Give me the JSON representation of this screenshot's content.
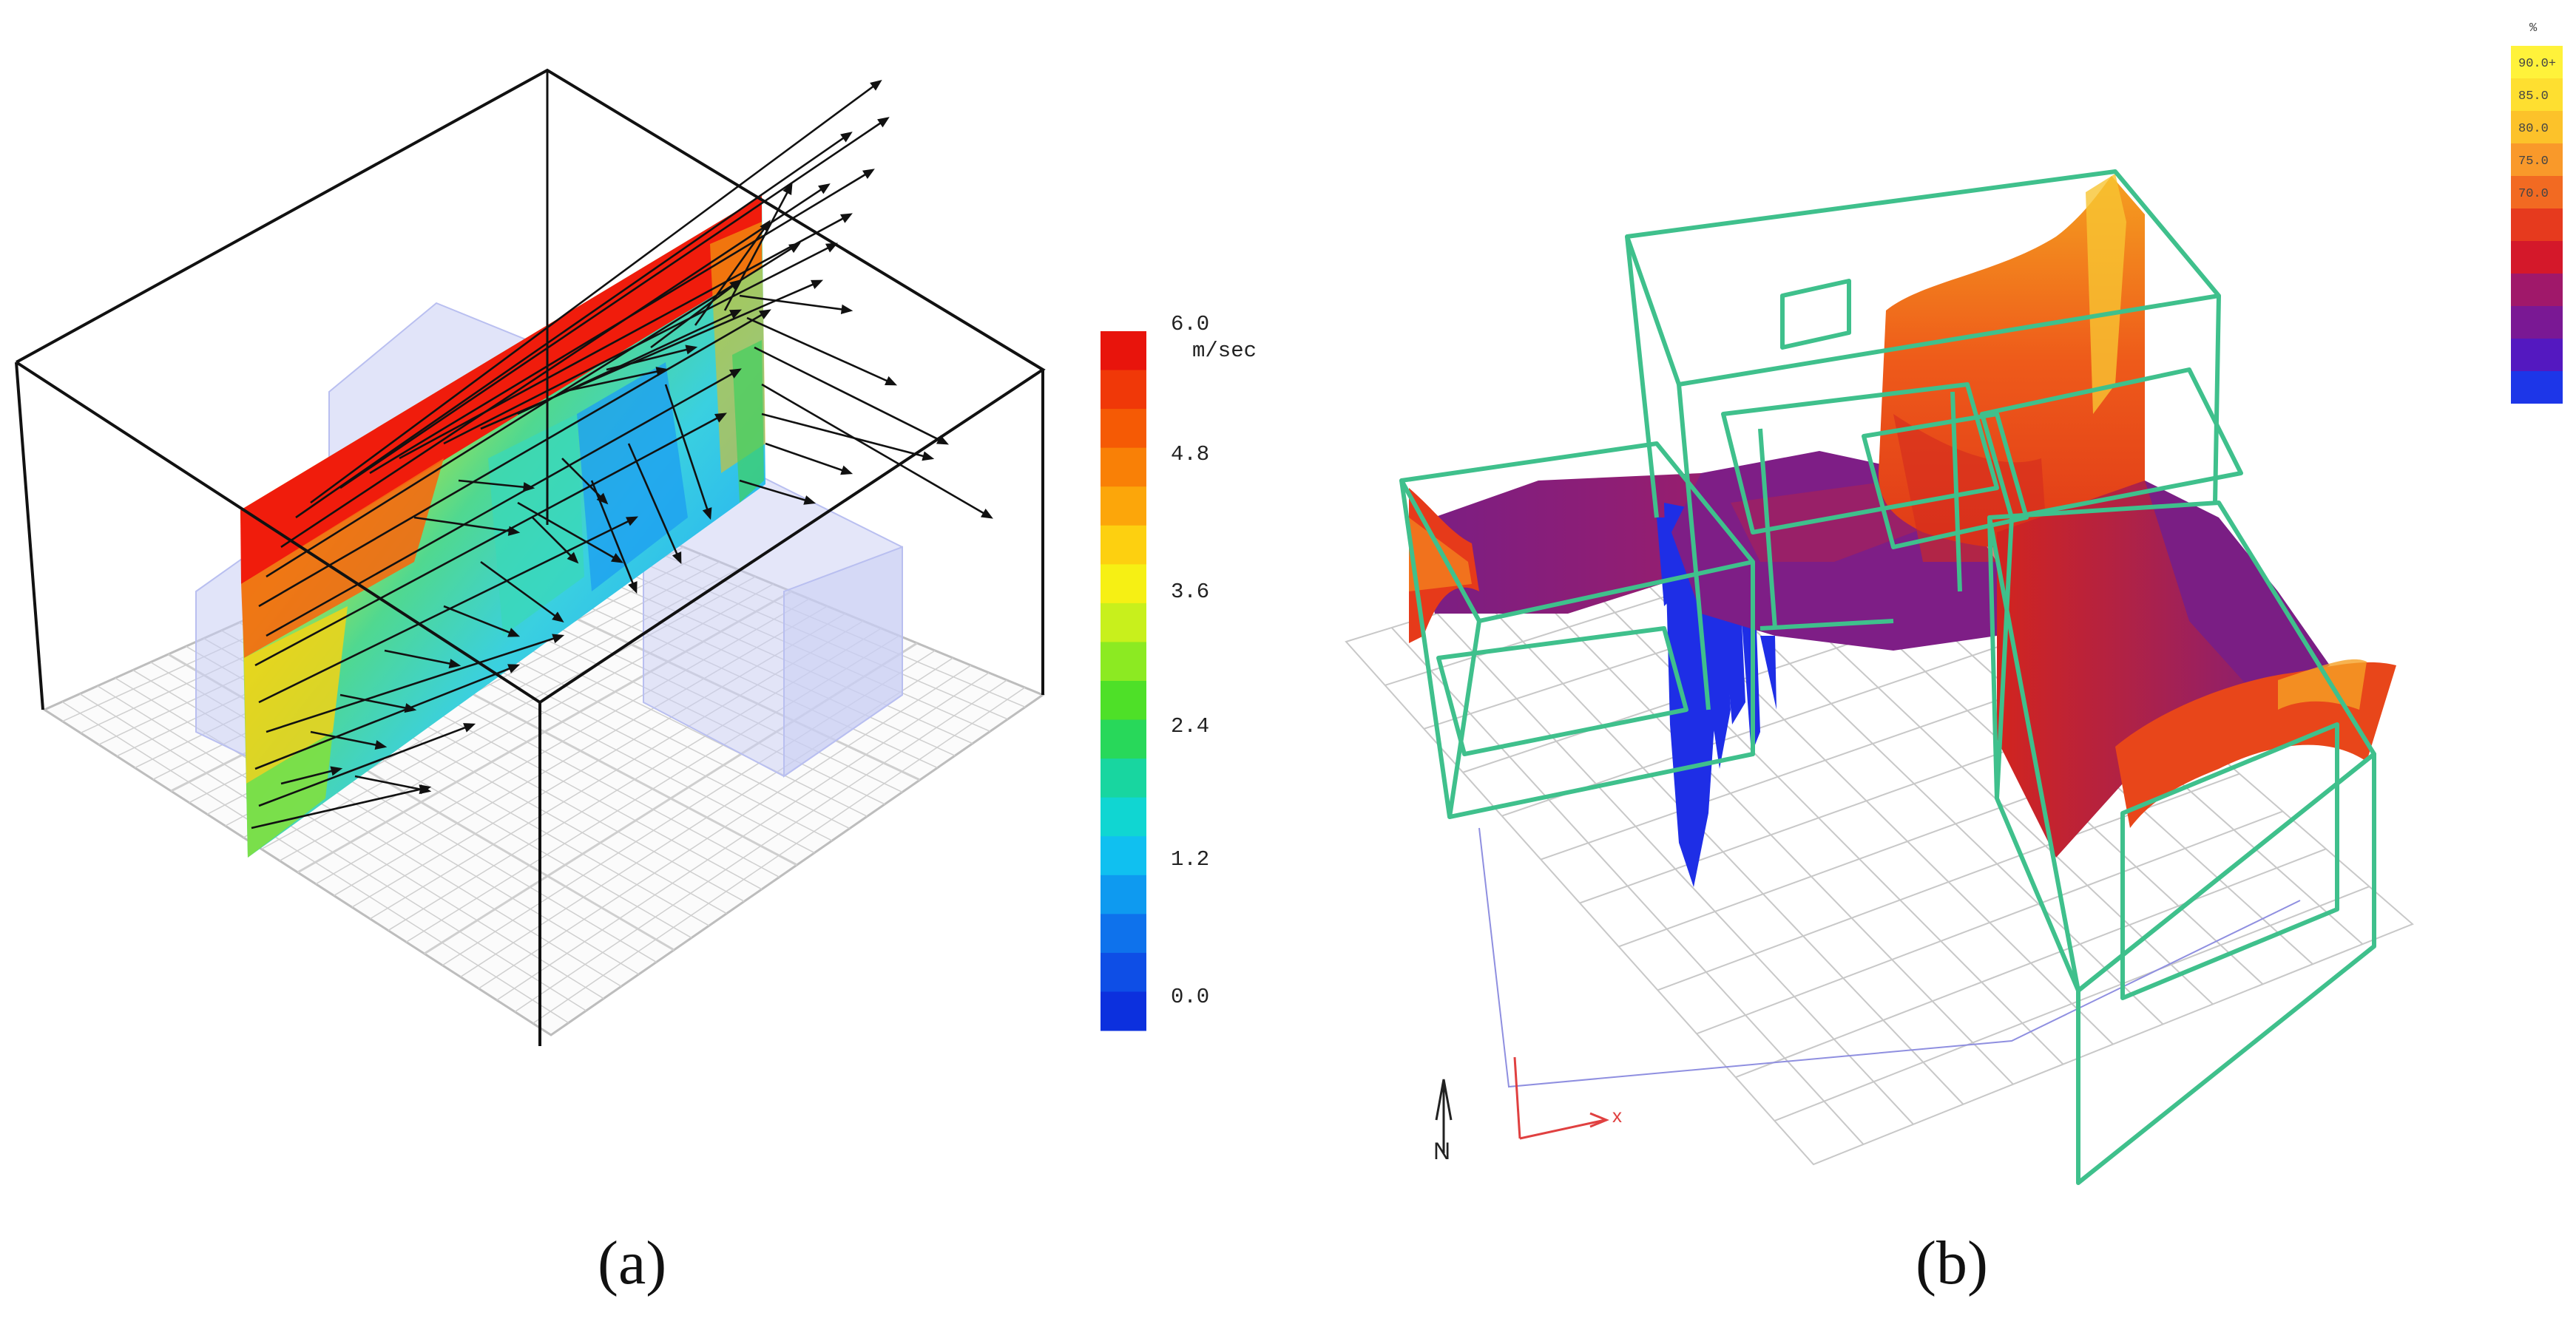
{
  "panel_a": {
    "label": "(a)",
    "colorbar": {
      "unit": "m/sec",
      "tick_labels": [
        "6.0",
        "4.8",
        "3.6",
        "2.4",
        "1.2",
        "0.0"
      ],
      "min": 0.0,
      "max": 6.0,
      "colors": [
        "#e8140c",
        "#f03808",
        "#f55a05",
        "#f98006",
        "#fca60a",
        "#fdd010",
        "#f6f014",
        "#c8f01c",
        "#8cea22",
        "#4ee028",
        "#28d85a",
        "#18d6a0",
        "#10d6d2",
        "#10c0f0",
        "#0e9af0",
        "#0e72ec",
        "#0e4ee6",
        "#0c30de"
      ]
    }
  },
  "panel_b": {
    "label": "(b)",
    "legend": {
      "unit": "%",
      "entries": [
        "90.0+",
        "85.0",
        "80.0",
        "75.0",
        "70.0",
        "",
        "",
        "",
        "",
        "",
        ""
      ],
      "colors": [
        "#fff23a",
        "#fedf30",
        "#fcc22a",
        "#f9992a",
        "#f26a22",
        "#e63a1e",
        "#d4182a",
        "#a0186a",
        "#7a1894",
        "#5418c0",
        "#1d36e8"
      ]
    },
    "axis": {
      "x_label": "x",
      "north_label": "N"
    },
    "wireframe_color": "#3fc08c"
  }
}
